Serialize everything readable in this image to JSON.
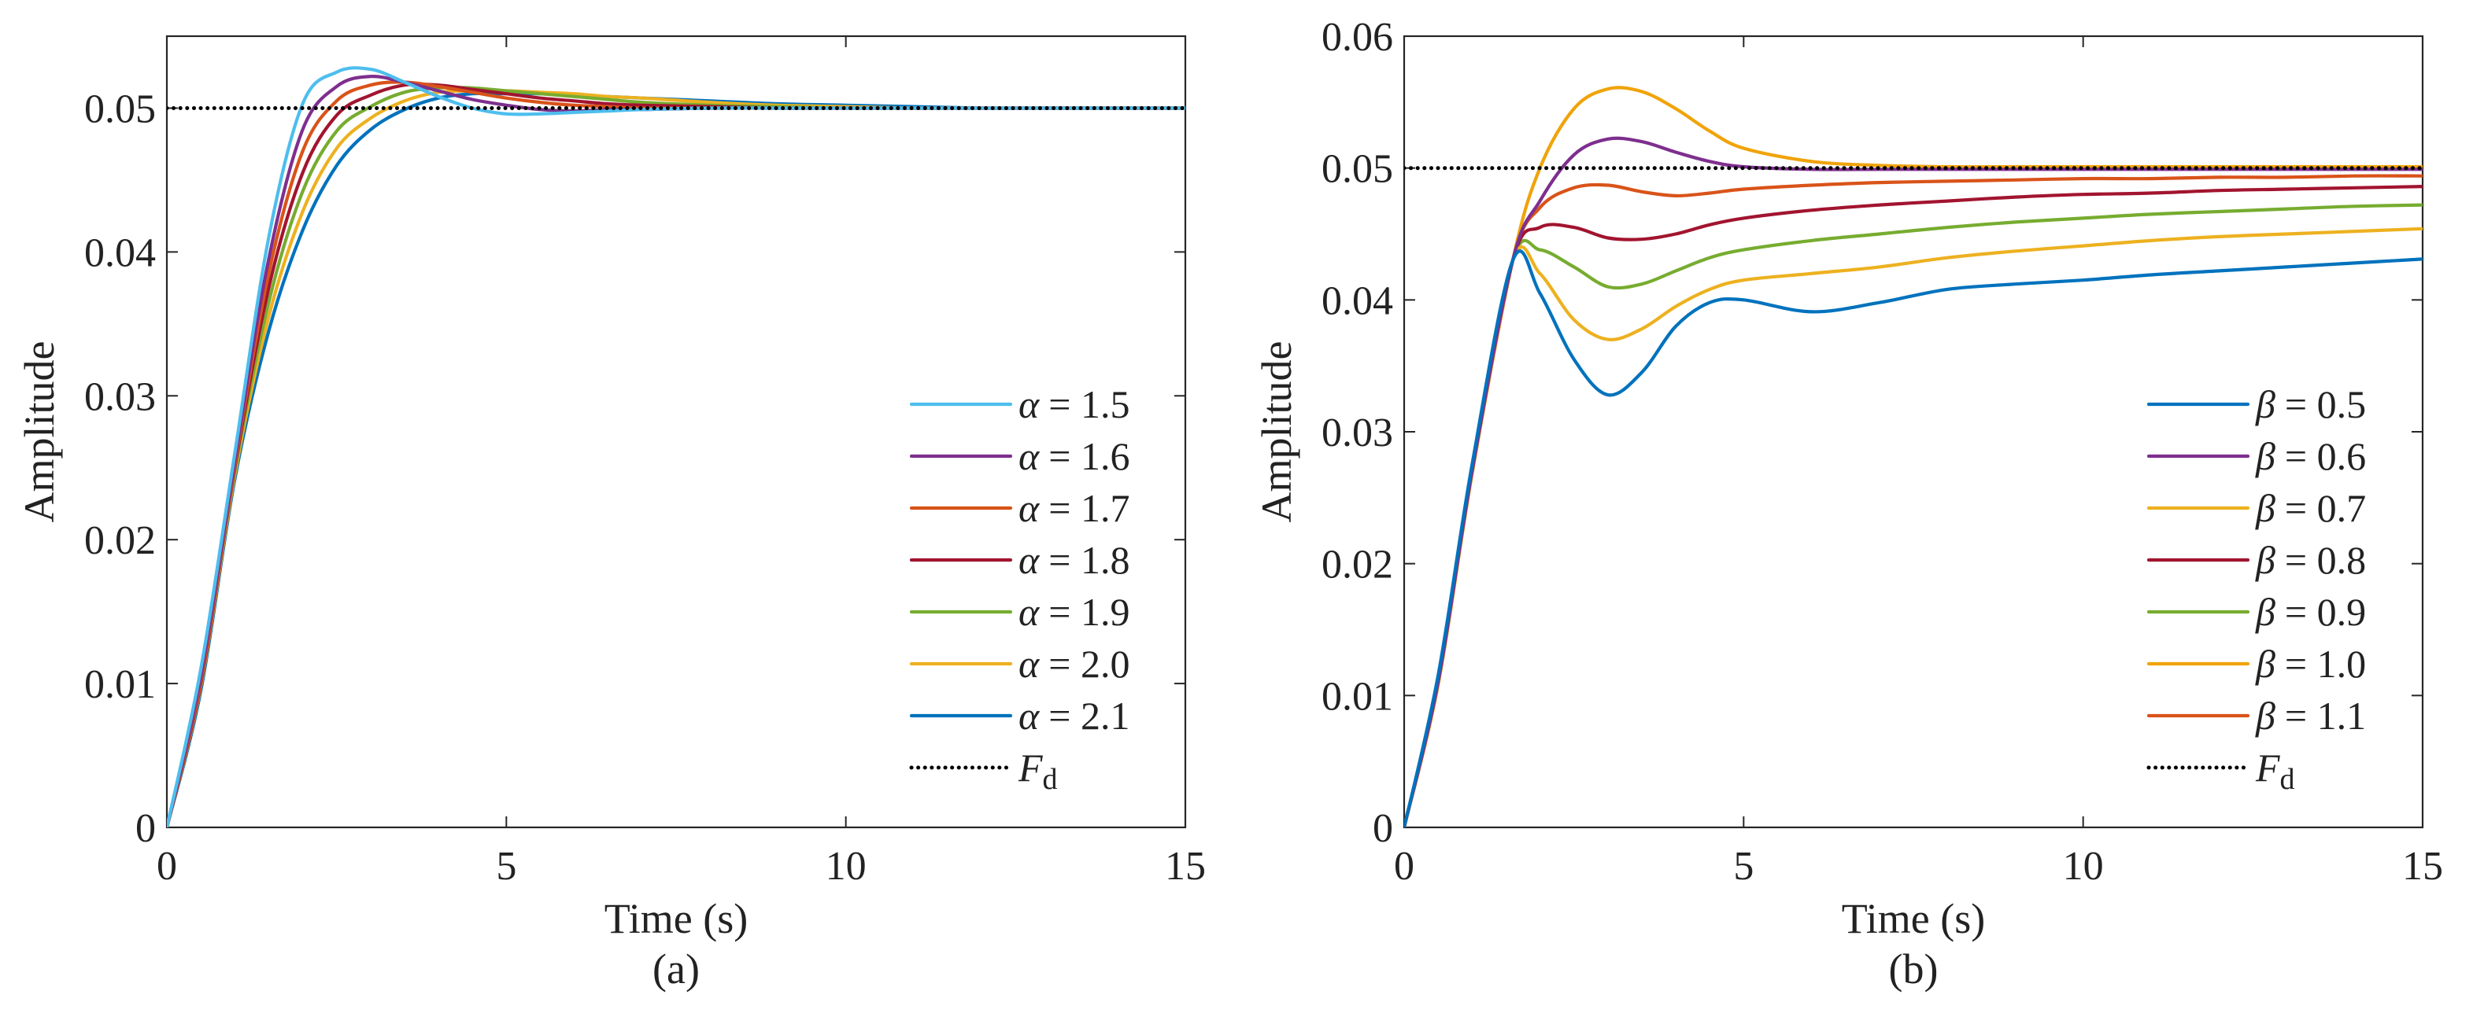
{
  "chart_data": [
    {
      "type": "line",
      "panel_label": "(a)",
      "xlabel": "Time (s)",
      "ylabel": "Amplitude",
      "xlim": [
        0,
        15
      ],
      "ylim": [
        0,
        0.055
      ],
      "xticks": [
        0,
        5,
        10,
        15
      ],
      "xtick_labels": [
        "0",
        "5",
        "10",
        "15"
      ],
      "yticks": [
        0,
        0.01,
        0.02,
        0.03,
        0.04,
        0.05
      ],
      "ytick_labels": [
        "0",
        "0.01",
        "0.02",
        "0.03",
        "0.04",
        "0.05"
      ],
      "grid": false,
      "legend_position": "lower-right",
      "x": [
        0,
        0.5,
        1,
        1.5,
        2,
        2.5,
        3,
        3.5,
        4,
        4.5,
        5,
        5.5,
        6,
        6.5,
        7,
        8,
        9,
        10,
        11,
        12,
        13,
        14,
        15
      ],
      "series": [
        {
          "name": "α = 1.5",
          "symbol": "α",
          "value_text": "= 1.5",
          "color": "#4DBEEE",
          "style": "solid",
          "values": [
            0,
            0.011,
            0.026,
            0.041,
            0.0503,
            0.0525,
            0.0527,
            0.0518,
            0.0508,
            0.05,
            0.0496,
            0.0496,
            0.0497,
            0.0498,
            0.0499,
            0.05,
            0.05,
            0.05,
            0.05,
            0.05,
            0.05,
            0.05,
            0.05
          ]
        },
        {
          "name": "α = 1.6",
          "symbol": "α",
          "value_text": "= 1.6",
          "color": "#7E2F8E",
          "style": "solid",
          "values": [
            0,
            0.0105,
            0.0255,
            0.0395,
            0.0485,
            0.0515,
            0.0522,
            0.0518,
            0.0512,
            0.0506,
            0.0502,
            0.0499,
            0.0498,
            0.0499,
            0.0499,
            0.05,
            0.05,
            0.05,
            0.05,
            0.05,
            0.05,
            0.05,
            0.05
          ]
        },
        {
          "name": "α = 1.7",
          "symbol": "α",
          "value_text": "= 1.7",
          "color": "#D95319",
          "style": "solid",
          "values": [
            0,
            0.0102,
            0.0252,
            0.0385,
            0.047,
            0.0505,
            0.0516,
            0.0518,
            0.0515,
            0.0511,
            0.0507,
            0.0504,
            0.0502,
            0.0501,
            0.05,
            0.05,
            0.05,
            0.05,
            0.05,
            0.05,
            0.05,
            0.05,
            0.05
          ]
        },
        {
          "name": "α = 1.8",
          "symbol": "α",
          "value_text": "= 1.8",
          "color": "#A2142F",
          "style": "solid",
          "values": [
            0,
            0.01,
            0.025,
            0.0375,
            0.0455,
            0.0495,
            0.0509,
            0.0516,
            0.0516,
            0.0513,
            0.051,
            0.0507,
            0.0505,
            0.0503,
            0.0502,
            0.0501,
            0.05,
            0.05,
            0.05,
            0.05,
            0.05,
            0.05,
            0.05
          ]
        },
        {
          "name": "α = 1.9",
          "symbol": "α",
          "value_text": "= 1.9",
          "color": "#77AC30",
          "style": "solid",
          "values": [
            0,
            0.01,
            0.0248,
            0.0365,
            0.0442,
            0.0484,
            0.0501,
            0.0511,
            0.0514,
            0.0514,
            0.0512,
            0.051,
            0.0508,
            0.0506,
            0.0504,
            0.0502,
            0.0501,
            0.05,
            0.05,
            0.05,
            0.05,
            0.05,
            0.05
          ]
        },
        {
          "name": "α = 2.0",
          "symbol": "α",
          "value_text": "= 2.0",
          "color": "#EDB120",
          "style": "solid",
          "values": [
            0,
            0.0098,
            0.0245,
            0.0355,
            0.0428,
            0.0472,
            0.0493,
            0.0505,
            0.0511,
            0.0512,
            0.0512,
            0.0511,
            0.051,
            0.0508,
            0.0507,
            0.0504,
            0.0502,
            0.0501,
            0.05,
            0.05,
            0.05,
            0.05,
            0.05
          ]
        },
        {
          "name": "α = 2.1",
          "symbol": "α",
          "value_text": "= 2.1",
          "color": "#0072BD",
          "style": "solid",
          "values": [
            0,
            0.0095,
            0.0242,
            0.0345,
            0.0415,
            0.046,
            0.0485,
            0.0499,
            0.0507,
            0.051,
            0.051,
            0.051,
            0.0509,
            0.0508,
            0.0507,
            0.0505,
            0.0503,
            0.0502,
            0.0501,
            0.05,
            0.05,
            0.05,
            0.05
          ]
        },
        {
          "name": "F_d",
          "symbol": "F",
          "subscript": "d",
          "value_text": "",
          "color": "#000000",
          "style": "dotted",
          "values": [
            0.05,
            0.05,
            0.05,
            0.05,
            0.05,
            0.05,
            0.05,
            0.05,
            0.05,
            0.05,
            0.05,
            0.05,
            0.05,
            0.05,
            0.05,
            0.05,
            0.05,
            0.05,
            0.05,
            0.05,
            0.05,
            0.05,
            0.05
          ]
        }
      ]
    },
    {
      "type": "line",
      "panel_label": "(b)",
      "xlabel": "Time (s)",
      "ylabel": "Amplitude",
      "xlim": [
        0,
        15
      ],
      "ylim": [
        0,
        0.06
      ],
      "xticks": [
        0,
        5,
        10,
        15
      ],
      "xtick_labels": [
        "0",
        "5",
        "10",
        "15"
      ],
      "yticks": [
        0,
        0.01,
        0.02,
        0.03,
        0.04,
        0.05,
        0.06
      ],
      "ytick_labels": [
        "0",
        "0.01",
        "0.02",
        "0.03",
        "0.04",
        "0.05",
        "0.06"
      ],
      "grid": false,
      "legend_position": "lower-right",
      "x": [
        0,
        0.5,
        1,
        1.6,
        2,
        2.5,
        3,
        3.5,
        4,
        4.5,
        5,
        6,
        7,
        8,
        9,
        10,
        11,
        12,
        13,
        14,
        15
      ],
      "series": [
        {
          "name": "β = 0.5",
          "symbol": "β",
          "value_text": "= 0.5",
          "color": "#0072BD",
          "style": "solid",
          "values": [
            0,
            0.0115,
            0.0275,
            0.043,
            0.0405,
            0.0355,
            0.0328,
            0.0345,
            0.038,
            0.0398,
            0.04,
            0.0391,
            0.0398,
            0.0408,
            0.0412,
            0.0415,
            0.0419,
            0.0422,
            0.0425,
            0.0428,
            0.0431
          ]
        },
        {
          "name": "β = 0.6",
          "symbol": "β",
          "value_text": "= 0.6",
          "color": "#7E2F8E",
          "style": "solid",
          "values": [
            0,
            0.011,
            0.027,
            0.043,
            0.0475,
            0.051,
            0.0522,
            0.052,
            0.0512,
            0.0505,
            0.0501,
            0.0499,
            0.0499,
            0.0499,
            0.0499,
            0.0499,
            0.0499,
            0.0499,
            0.0499,
            0.0499,
            0.0499
          ]
        },
        {
          "name": "β = 0.7",
          "symbol": "β",
          "value_text": "= 0.7",
          "color": "#EDB120",
          "style": "solid",
          "values": [
            0,
            0.0112,
            0.0272,
            0.043,
            0.042,
            0.0385,
            0.037,
            0.0378,
            0.0395,
            0.0408,
            0.0415,
            0.042,
            0.0425,
            0.0432,
            0.0437,
            0.0441,
            0.0445,
            0.0448,
            0.045,
            0.0452,
            0.0454
          ]
        },
        {
          "name": "β = 0.8",
          "symbol": "β",
          "value_text": "= 0.8",
          "color": "#A2142F",
          "style": "solid",
          "values": [
            0,
            0.0112,
            0.0272,
            0.043,
            0.0455,
            0.0455,
            0.0447,
            0.0446,
            0.045,
            0.0457,
            0.0462,
            0.0468,
            0.0472,
            0.0475,
            0.0478,
            0.048,
            0.0481,
            0.0483,
            0.0484,
            0.0485,
            0.0486
          ]
        },
        {
          "name": "β = 0.9",
          "symbol": "β",
          "value_text": "= 0.9",
          "color": "#77AC30",
          "style": "solid",
          "values": [
            0,
            0.0112,
            0.0272,
            0.043,
            0.0438,
            0.0425,
            0.041,
            0.0412,
            0.0422,
            0.0432,
            0.0438,
            0.0445,
            0.045,
            0.0455,
            0.0459,
            0.0462,
            0.0465,
            0.0467,
            0.0469,
            0.0471,
            0.0472
          ]
        },
        {
          "name": "β = 1.0",
          "symbol": "β",
          "value_text": "= 1.0",
          "color": "#F0A30A",
          "style": "solid",
          "values": [
            0,
            0.0108,
            0.0268,
            0.043,
            0.05,
            0.0545,
            0.056,
            0.0558,
            0.0545,
            0.0528,
            0.0515,
            0.0505,
            0.0502,
            0.0501,
            0.0501,
            0.0501,
            0.0501,
            0.0501,
            0.0501,
            0.0501,
            0.0501
          ]
        },
        {
          "name": "β = 1.1",
          "symbol": "β",
          "value_text": "= 1.1",
          "color": "#D95319",
          "style": "solid",
          "values": [
            0,
            0.0111,
            0.0271,
            0.043,
            0.047,
            0.0485,
            0.0487,
            0.0482,
            0.0479,
            0.0481,
            0.0484,
            0.0487,
            0.0489,
            0.049,
            0.0491,
            0.0492,
            0.0492,
            0.0493,
            0.0493,
            0.0494,
            0.0494
          ]
        },
        {
          "name": "F_d",
          "symbol": "F",
          "subscript": "d",
          "value_text": "",
          "color": "#000000",
          "style": "dotted",
          "values": [
            0.05,
            0.05,
            0.05,
            0.05,
            0.05,
            0.05,
            0.05,
            0.05,
            0.05,
            0.05,
            0.05,
            0.05,
            0.05,
            0.05,
            0.05,
            0.05,
            0.05,
            0.05,
            0.05,
            0.05,
            0.05
          ]
        }
      ]
    }
  ]
}
